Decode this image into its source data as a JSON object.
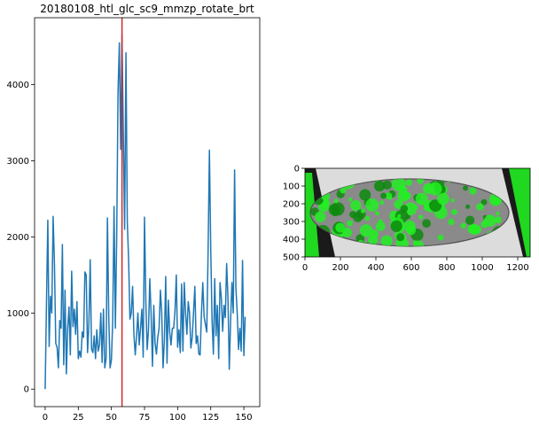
{
  "chart_data": [
    {
      "type": "line",
      "title": "20180108_htl_glc_sc9_mmzp_rotate_brt",
      "xlabel": "",
      "ylabel": "",
      "xlim": [
        -8,
        162
      ],
      "ylim": [
        -230,
        4880
      ],
      "x_ticks": [
        0,
        25,
        50,
        75,
        100,
        125,
        150
      ],
      "y_ticks": [
        0,
        1000,
        2000,
        3000,
        4000
      ],
      "grid": false,
      "series_color": "#1f77b4",
      "vline": {
        "x": 58,
        "color": "#d62728"
      },
      "values": [
        0,
        1150,
        2220,
        560,
        1220,
        1000,
        2270,
        1650,
        600,
        550,
        280,
        900,
        800,
        1900,
        320,
        1300,
        200,
        800,
        1080,
        450,
        1550,
        820,
        1050,
        720,
        1150,
        400,
        500,
        420,
        750,
        680,
        1540,
        1500,
        480,
        850,
        1700,
        530,
        480,
        700,
        400,
        780,
        500,
        580,
        1000,
        350,
        1050,
        280,
        400,
        2250,
        950,
        280,
        380,
        900,
        2400,
        800,
        2000,
        3900,
        4550,
        3150,
        4650,
        3350,
        2100,
        4420,
        2200,
        1700,
        920,
        1000,
        1350,
        720,
        450,
        700,
        1000,
        580,
        800,
        1050,
        420,
        2260,
        1150,
        520,
        780,
        1450,
        970,
        300,
        1100,
        600,
        460,
        680,
        800,
        1300,
        1000,
        280,
        650,
        1480,
        340,
        1170,
        750,
        580,
        800,
        800,
        1020,
        1500,
        550,
        780,
        480,
        1380,
        500,
        1400,
        1000,
        720,
        1150,
        1000,
        540,
        680,
        1000,
        1350,
        600,
        700,
        460,
        450,
        1000,
        1400,
        950,
        850,
        750,
        1800,
        3140,
        1850,
        900,
        460,
        1450,
        700,
        1100,
        400,
        1400,
        1200,
        760,
        1100,
        940,
        1650,
        1200,
        260,
        900,
        1400,
        1000,
        2880,
        1330,
        1000,
        520,
        800,
        500,
        1690,
        440,
        950
      ]
    },
    {
      "type": "heatmap",
      "title": "",
      "xlim": [
        0,
        1270
      ],
      "ylim": [
        500,
        0
      ],
      "x_ticks": [
        0,
        200,
        400,
        600,
        800,
        1000,
        1200
      ],
      "y_ticks": [
        0,
        100,
        200,
        300,
        400,
        500
      ],
      "description_colors": {
        "overlay": "#22ee22",
        "background": "#cfcfcf"
      }
    }
  ]
}
